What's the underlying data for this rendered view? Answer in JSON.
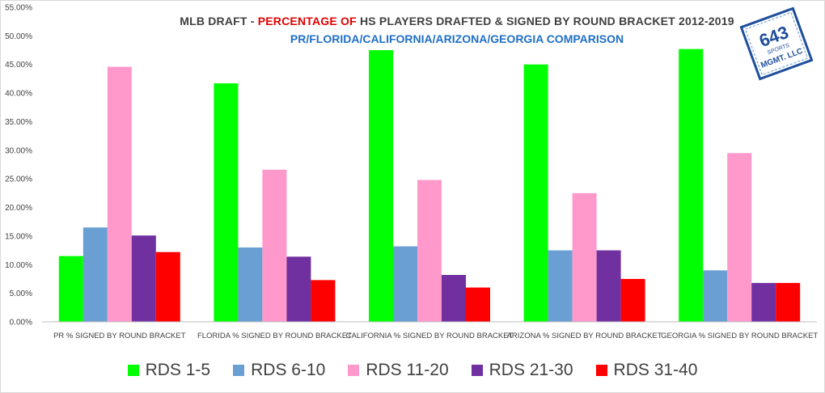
{
  "header": {
    "title_part1": "MLB DRAFT - ",
    "title_part2": "PERCENTAGE OF",
    "title_part3": " HS PLAYERS DRAFTED & SIGNED BY ROUND BRACKET 2012-2019",
    "subtitle": "PR/FLORIDA/CALIFORNIA/ARIZONA/GEORGIA  COMPARISON"
  },
  "logo": {
    "line1": "643",
    "line2": "SPORTS",
    "line3": "MGMT. LLC"
  },
  "chart_data": {
    "type": "bar",
    "title": "MLB DRAFT - PERCENTAGE OF HS PLAYERS DRAFTED & SIGNED BY ROUND BRACKET 2012-2019",
    "subtitle": "PR/FLORIDA/CALIFORNIA/ARIZONA/GEORGIA  COMPARISON",
    "categories": [
      "PR % SIGNED BY ROUND BRACKET",
      "FLORIDA % SIGNED BY ROUND BRACKET",
      "CALIFORNIA % SIGNED BY ROUND BRACKET",
      "ARIZONA % SIGNED BY ROUND BRACKET",
      "GEORGIA % SIGNED BY ROUND BRACKET"
    ],
    "series": [
      {
        "name": "RDS 1-5",
        "color": "#00ff00",
        "values": [
          11.5,
          41.7,
          47.5,
          45.0,
          47.7
        ]
      },
      {
        "name": "RDS 6-10",
        "color": "#6a9fd3",
        "values": [
          16.5,
          13.0,
          13.2,
          12.5,
          9.0
        ]
      },
      {
        "name": "RDS 11-20",
        "color": "#ff99cc",
        "values": [
          44.6,
          26.6,
          24.8,
          22.5,
          29.5
        ]
      },
      {
        "name": "RDS 21-30",
        "color": "#7030a0",
        "values": [
          15.1,
          11.4,
          8.2,
          12.5,
          6.8
        ]
      },
      {
        "name": "RDS 31-40",
        "color": "#ff0000",
        "values": [
          12.2,
          7.3,
          6.0,
          7.5,
          6.8
        ]
      }
    ],
    "yticks": [
      "0.00%",
      "5.00%",
      "10.00%",
      "15.00%",
      "20.00%",
      "25.00%",
      "30.00%",
      "35.00%",
      "40.00%",
      "45.00%",
      "50.00%",
      "55.00%"
    ],
    "ylim": [
      0,
      55
    ],
    "grid": false,
    "legend_position": "bottom"
  }
}
